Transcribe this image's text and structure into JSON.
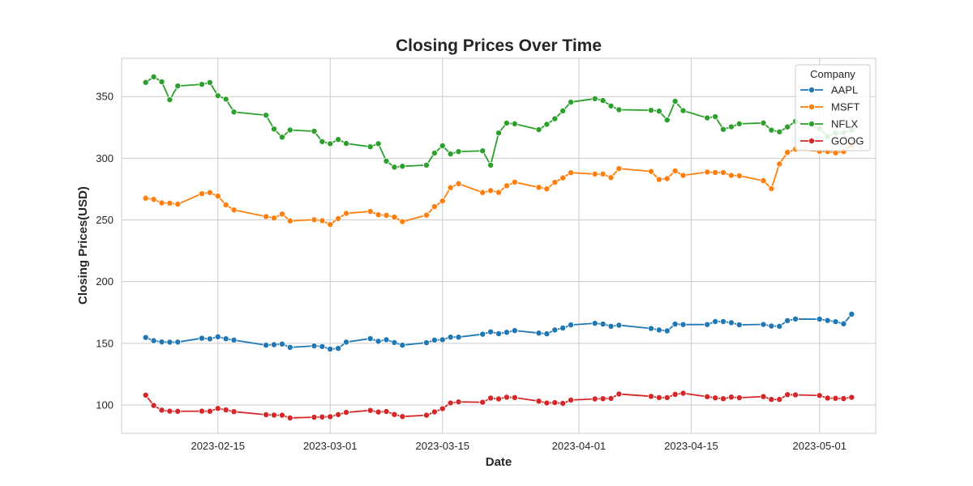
{
  "chart_data": {
    "type": "line",
    "title": "Closing Prices Over Time",
    "xlabel": "Date",
    "ylabel": "Closing Prices(USD)",
    "xlim": [
      "2023-02-03",
      "2023-05-08"
    ],
    "ylim": [
      77,
      381
    ],
    "x_ticks": [
      "2023-02-15",
      "2023-03-01",
      "2023-03-15",
      "2023-04-01",
      "2023-04-15",
      "2023-05-01"
    ],
    "y_ticks": [
      100,
      150,
      200,
      250,
      300,
      350
    ],
    "grid": true,
    "legend": {
      "title": "Company",
      "position": "top-right"
    },
    "x": [
      "2023-02-06",
      "2023-02-07",
      "2023-02-08",
      "2023-02-09",
      "2023-02-10",
      "2023-02-13",
      "2023-02-14",
      "2023-02-15",
      "2023-02-16",
      "2023-02-17",
      "2023-02-21",
      "2023-02-22",
      "2023-02-23",
      "2023-02-24",
      "2023-02-27",
      "2023-02-28",
      "2023-03-01",
      "2023-03-02",
      "2023-03-03",
      "2023-03-06",
      "2023-03-07",
      "2023-03-08",
      "2023-03-09",
      "2023-03-10",
      "2023-03-13",
      "2023-03-14",
      "2023-03-15",
      "2023-03-16",
      "2023-03-17",
      "2023-03-20",
      "2023-03-21",
      "2023-03-22",
      "2023-03-23",
      "2023-03-24",
      "2023-03-27",
      "2023-03-28",
      "2023-03-29",
      "2023-03-30",
      "2023-03-31",
      "2023-04-03",
      "2023-04-04",
      "2023-04-05",
      "2023-04-06",
      "2023-04-10",
      "2023-04-11",
      "2023-04-12",
      "2023-04-13",
      "2023-04-14",
      "2023-04-17",
      "2023-04-18",
      "2023-04-19",
      "2023-04-20",
      "2023-04-21",
      "2023-04-24",
      "2023-04-25",
      "2023-04-26",
      "2023-04-27",
      "2023-04-28",
      "2023-05-01",
      "2023-05-02",
      "2023-05-03",
      "2023-05-04",
      "2023-05-05"
    ],
    "series": [
      {
        "name": "AAPL",
        "color": "#1f77b4",
        "values": [
          154.7,
          152.1,
          151.1,
          150.9,
          151.0,
          154.1,
          153.6,
          155.3,
          153.7,
          152.6,
          148.5,
          148.9,
          149.4,
          146.7,
          147.9,
          147.4,
          145.3,
          145.9,
          151.0,
          153.8,
          151.6,
          152.9,
          150.6,
          148.5,
          150.5,
          152.6,
          152.9,
          155.0,
          155.0,
          157.4,
          159.3,
          157.8,
          158.9,
          160.3,
          158.3,
          157.7,
          160.8,
          162.4,
          164.9,
          166.2,
          165.6,
          163.8,
          164.7,
          162.0,
          160.8,
          160.1,
          165.6,
          165.2,
          165.2,
          167.6,
          167.6,
          166.7,
          165.0,
          165.3,
          164.0,
          163.8,
          168.4,
          169.7,
          169.6,
          168.5,
          167.5,
          165.8,
          173.6
        ]
      },
      {
        "name": "MSFT",
        "color": "#ff7f0e",
        "values": [
          267.6,
          266.7,
          263.8,
          263.6,
          262.8,
          271.3,
          272.2,
          269.3,
          262.2,
          258.1,
          252.7,
          251.5,
          254.8,
          249.2,
          250.2,
          249.4,
          246.3,
          251.1,
          255.3,
          256.9,
          254.2,
          253.7,
          252.3,
          248.6,
          253.9,
          260.8,
          265.4,
          276.2,
          279.4,
          272.2,
          273.8,
          272.3,
          277.7,
          280.6,
          276.4,
          275.2,
          280.5,
          284.1,
          288.3,
          287.2,
          287.2,
          284.3,
          291.6,
          289.3,
          282.8,
          283.5,
          289.8,
          286.1,
          288.8,
          288.4,
          288.4,
          286.1,
          285.8,
          281.8,
          275.4,
          295.4,
          304.8,
          307.3,
          305.6,
          305.4,
          304.4,
          305.4,
          310.7
        ]
      },
      {
        "name": "NFLX",
        "color": "#2ca02c",
        "values": [
          361.5,
          366.0,
          362.0,
          347.4,
          358.6,
          359.9,
          361.4,
          350.7,
          347.9,
          337.5,
          334.9,
          323.7,
          317.1,
          322.9,
          321.9,
          313.5,
          311.8,
          315.2,
          312.0,
          309.3,
          311.8,
          297.7,
          292.8,
          293.5,
          294.4,
          304.2,
          310.1,
          303.5,
          305.4,
          306.0,
          294.4,
          320.5,
          328.5,
          327.9,
          323.2,
          327.5,
          332.0,
          338.4,
          345.5,
          348.3,
          346.8,
          342.4,
          339.3,
          338.9,
          338.2,
          331.0,
          346.2,
          338.6,
          332.7,
          333.7,
          323.4,
          325.5,
          327.9,
          328.6,
          322.8,
          321.4,
          325.4,
          329.9,
          324.1,
          317.5,
          320.5,
          320.8,
          322.8
        ]
      },
      {
        "name": "GOOG",
        "color": "#d62728",
        "values": [
          108.0,
          99.6,
          95.8,
          95.0,
          94.9,
          95.0,
          94.9,
          97.2,
          96.0,
          94.6,
          92.1,
          91.8,
          91.7,
          89.5,
          90.1,
          90.3,
          90.5,
          92.2,
          94.0,
          95.6,
          94.3,
          94.7,
          92.3,
          90.6,
          91.7,
          94.4,
          97.0,
          101.6,
          102.5,
          102.2,
          105.6,
          104.9,
          106.3,
          106.0,
          103.1,
          101.6,
          101.9,
          101.3,
          104.0,
          104.9,
          105.1,
          105.3,
          108.9,
          107.0,
          106.0,
          106.0,
          108.6,
          109.5,
          106.7,
          105.8,
          105.1,
          106.4,
          105.9,
          106.8,
          104.5,
          104.5,
          108.4,
          108.2,
          107.7,
          105.6,
          105.4,
          105.2,
          106.2
        ]
      }
    ]
  }
}
